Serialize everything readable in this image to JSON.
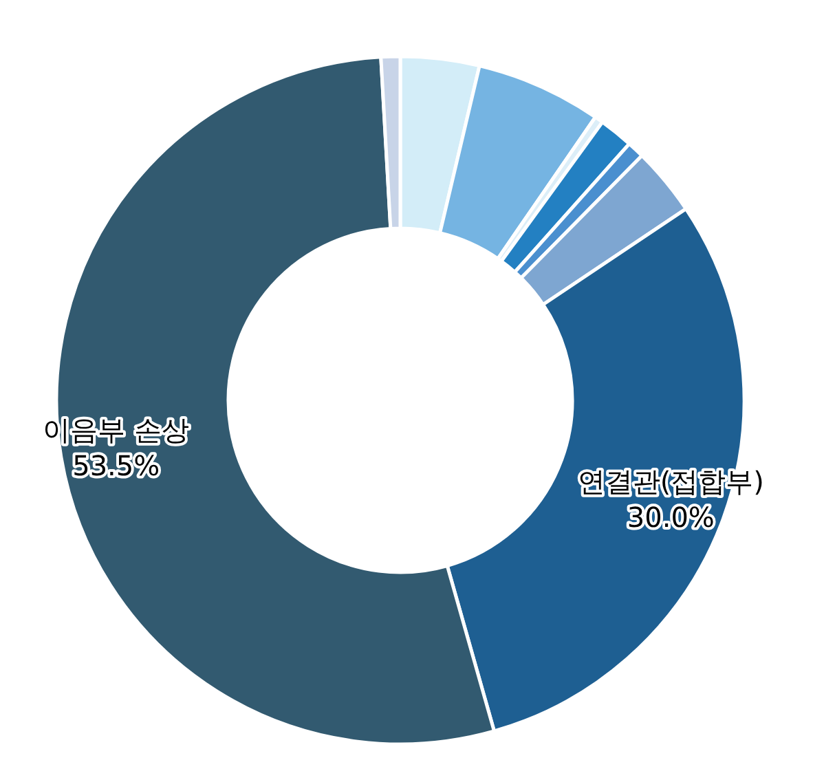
{
  "chart_data": {
    "type": "donut",
    "categories": [
      null,
      null,
      null,
      null,
      null,
      null,
      "연결관(접합부)",
      "이음부 손상",
      null
    ],
    "values": [
      3.7,
      5.9,
      0.4,
      1.6,
      0.8,
      3.2,
      30.0,
      53.5,
      0.9
    ],
    "value_labels": [
      null,
      null,
      null,
      null,
      null,
      null,
      "30.0%",
      "53.5%",
      null
    ],
    "colors": [
      "#d3edf8",
      "#75b4e2",
      "#dceef8",
      "#2380c2",
      "#4a8fcf",
      "#7ea6d1",
      "#1e5f92",
      "#325a70",
      "#c8d4e8"
    ]
  }
}
